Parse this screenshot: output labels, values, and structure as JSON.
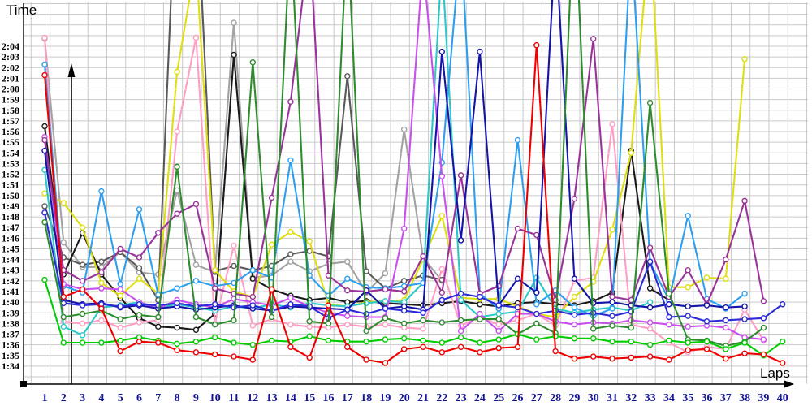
{
  "titles": {
    "y_axis": "Time",
    "x_axis": "Laps"
  },
  "chart_data": {
    "type": "line",
    "title": "",
    "xlabel": "Laps",
    "ylabel": "Time",
    "x": [
      1,
      2,
      3,
      4,
      5,
      6,
      7,
      8,
      9,
      10,
      11,
      12,
      13,
      14,
      15,
      16,
      17,
      18,
      19,
      20,
      21,
      22,
      23,
      24,
      25,
      26,
      27,
      28,
      29,
      30,
      31,
      32,
      33,
      34,
      35,
      36,
      37,
      38,
      39,
      40
    ],
    "x_tick_labels": [
      "1",
      "2",
      "3",
      "4",
      "5",
      "6",
      "7",
      "8",
      "9",
      "10",
      "11",
      "12",
      "13",
      "14",
      "15",
      "16",
      "17",
      "18",
      "19",
      "20",
      "21",
      "22",
      "23",
      "24",
      "25",
      "26",
      "27",
      "28",
      "29",
      "30",
      "31",
      "32",
      "33",
      "34",
      "35",
      "36",
      "37",
      "38",
      "39",
      "40"
    ],
    "y_tick_labels": [
      "2:04",
      "2:03",
      "2:02",
      "2:01",
      "2:00",
      "1:59",
      "1:58",
      "1:57",
      "1:56",
      "1:55",
      "1:54",
      "1:53",
      "1:52",
      "1:51",
      "1:50",
      "1:49",
      "1:48",
      "1:47",
      "1:46",
      "1:45",
      "1:44",
      "1:43",
      "1:42",
      "1:41",
      "1:40",
      "1:39",
      "1:38",
      "1:37",
      "1:36",
      "1:35",
      "1:34"
    ],
    "y_tick_seconds": [
      124,
      123,
      122,
      121,
      120,
      119,
      118,
      117,
      116,
      115,
      114,
      113,
      112,
      111,
      110,
      109,
      108,
      107,
      106,
      105,
      104,
      103,
      102,
      101,
      100,
      99,
      98,
      97,
      96,
      95,
      94
    ],
    "ylim_seconds": [
      94,
      124
    ],
    "unit": "lap time as seconds past 1:00 (96.2 = 1:36.2); values above 128 run off the top of the plot",
    "grid": true,
    "legend_position": "none",
    "series": [
      {
        "name": "gray",
        "color": "#a2a2a2",
        "values": [
          124.7,
          105.6,
          103.3,
          103.3,
          104.7,
          102.8,
          102.6,
          110.5,
          103.5,
          102.8,
          126.2,
          102.3,
          102.5,
          103.8,
          102.9,
          103.6,
          103.8,
          100.9,
          102.7,
          116.2,
          104.2,
          102.0,
          null,
          null,
          null,
          null,
          null,
          null,
          null,
          null,
          null,
          null,
          null,
          null,
          null,
          null,
          null,
          null,
          null,
          null
        ]
      },
      {
        "name": "darkgray",
        "color": "#595959",
        "values": [
          109.0,
          104.2,
          103.5,
          103.8,
          104.7,
          103.2,
          100.2,
          142.0,
          140.0,
          102.9,
          103.4,
          103.0,
          103.4,
          104.5,
          104.8,
          104.3,
          121.2,
          102.9,
          101.3,
          102.0,
          102.5,
          102.1,
          null,
          null,
          null,
          null,
          null,
          null,
          null,
          null,
          null,
          null,
          null,
          null,
          null,
          null,
          null,
          null,
          null,
          null
        ]
      },
      {
        "name": "black",
        "color": "#1a1a1a",
        "values": [
          116.5,
          102.6,
          106.5,
          102.6,
          100.4,
          98.5,
          97.7,
          97.6,
          97.4,
          98.9,
          123.2,
          102.2,
          101.2,
          100.6,
          100.2,
          100.4,
          100.0,
          100.1,
          99.9,
          99.8,
          99.7,
          99.9,
          100.1,
          99.8,
          99.6,
          99.9,
          100.0,
          99.8,
          99.7,
          100.1,
          100.9,
          114.2,
          101.3,
          100.2,
          null,
          null,
          null,
          null,
          null,
          null
        ]
      },
      {
        "name": "pink",
        "color": "#ff9ec4",
        "values": [
          124.8,
          98.2,
          98.0,
          98.3,
          97.6,
          98.1,
          98.3,
          116.0,
          124.8,
          98.0,
          105.3,
          97.8,
          98.4,
          97.9,
          97.7,
          97.6,
          97.9,
          97.7,
          97.9,
          97.6,
          97.5,
          103.1,
          97.8,
          98.6,
          97.9,
          98.3,
          98.9,
          97.8,
          102.0,
          102.3,
          116.7,
          97.9,
          97.5,
          96.2,
          95.3,
          95.8,
          95.6,
          99.3,
          96.4,
          null
        ]
      },
      {
        "name": "yellow",
        "color": "#dede12",
        "values": [
          110.2,
          109.3,
          107.0,
          101.8,
          100.6,
          102.2,
          100.8,
          121.6,
          132.0,
          103.0,
          101.0,
          100.5,
          105.4,
          106.6,
          105.7,
          99.8,
          99.6,
          100.0,
          100.1,
          100.2,
          104.0,
          108.1,
          100.4,
          100.3,
          100.3,
          99.6,
          98.9,
          98.6,
          100.5,
          101.9,
          106.8,
          114.0,
          135.0,
          101.4,
          101.4,
          102.3,
          102.2,
          122.8,
          null,
          null
        ]
      },
      {
        "name": "cyan",
        "color": "#2cc8c8",
        "values": [
          112.4,
          97.7,
          96.9,
          99.5,
          99.7,
          100.0,
          99.5,
          99.8,
          99.5,
          99.2,
          99.6,
          99.4,
          99.8,
          99.5,
          99.9,
          99.7,
          99.6,
          99.9,
          100.1,
          100.0,
          101.8,
          132.0,
          100.2,
          98.6,
          98.9,
          99.1,
          102.3,
          99.4,
          99.0,
          99.3,
          99.5,
          99.2,
          100.0,
          null,
          null,
          null,
          null,
          null,
          null,
          null
        ]
      },
      {
        "name": "lightblue",
        "color": "#2d9ff0",
        "values": [
          122.3,
          101.5,
          100.9,
          110.4,
          101.7,
          108.7,
          100.7,
          101.3,
          102.0,
          101.5,
          101.8,
          103.0,
          102.3,
          113.3,
          102.5,
          100.6,
          102.2,
          101.4,
          101.3,
          101.5,
          101.8,
          113.1,
          134.0,
          100.8,
          99.4,
          115.2,
          99.8,
          101.1,
          99.5,
          98.7,
          99.4,
          134.0,
          103.7,
          100.2,
          108.1,
          100.3,
          99.4,
          100.8,
          null,
          null
        ]
      },
      {
        "name": "magenta",
        "color": "#c94fee",
        "values": [
          115.5,
          101.7,
          101.2,
          101.3,
          101.2,
          100.0,
          99.4,
          100.2,
          99.8,
          99.5,
          100.3,
          100.0,
          99.7,
          100.4,
          99.6,
          99.0,
          98.7,
          98.6,
          98.6,
          106.9,
          132.0,
          111.8,
          97.3,
          98.9,
          97.3,
          98.9,
          98.9,
          98.2,
          97.9,
          98.1,
          98.0,
          98.3,
          98.1,
          97.9,
          97.7,
          97.8,
          97.6,
          96.7,
          96.5,
          null
        ]
      },
      {
        "name": "purple",
        "color": "#993399",
        "values": [
          115.2,
          103.0,
          102.0,
          102.8,
          105.0,
          104.2,
          106.5,
          108.3,
          109.2,
          101.3,
          100.8,
          100.5,
          109.8,
          118.8,
          134.0,
          102.5,
          101.1,
          101.0,
          101.2,
          101.0,
          104.3,
          100.9,
          111.9,
          100.8,
          101.5,
          106.9,
          106.3,
          100.2,
          109.7,
          124.7,
          100.5,
          100.2,
          105.1,
          100.5,
          103.0,
          99.8,
          104.0,
          109.5,
          100.1,
          null
        ]
      },
      {
        "name": "navy",
        "color": "#1414a8",
        "values": [
          114.2,
          100.2,
          99.8,
          99.9,
          99.5,
          99.7,
          99.4,
          99.6,
          99.3,
          99.5,
          99.7,
          99.4,
          99.2,
          99.6,
          99.5,
          99.4,
          99.3,
          101.1,
          99.4,
          99.6,
          99.3,
          123.5,
          105.8,
          123.5,
          99.7,
          102.2,
          100.9,
          134.0,
          102.2,
          99.9,
          100.0,
          99.7,
          99.5,
          99.8,
          99.6,
          99.7,
          99.5,
          99.6,
          null,
          null
        ]
      },
      {
        "name": "blue",
        "color": "#2a2ad6",
        "values": [
          108.4,
          99.9,
          99.7,
          99.8,
          99.6,
          99.8,
          99.7,
          99.9,
          99.6,
          99.8,
          99.5,
          99.7,
          99.2,
          99.8,
          99.6,
          98.5,
          99.3,
          98.9,
          99.4,
          99.2,
          99.0,
          100.2,
          100.8,
          100.5,
          99.7,
          99.5,
          98.9,
          99.2,
          98.8,
          99.0,
          98.7,
          99.1,
          103.8,
          98.6,
          98.7,
          98.2,
          98.3,
          98.4,
          98.5,
          99.8
        ]
      },
      {
        "name": "forestgreen",
        "color": "#2e8b2e",
        "values": [
          107.5,
          98.6,
          98.9,
          99.2,
          98.4,
          98.8,
          98.6,
          112.7,
          98.6,
          97.9,
          98.3,
          122.5,
          98.6,
          135.0,
          98.2,
          98.0,
          135.0,
          97.3,
          98.5,
          98.0,
          98.3,
          98.1,
          98.3,
          98.4,
          98.4,
          97.0,
          98.0,
          97.1,
          138.0,
          97.5,
          97.8,
          97.6,
          118.7,
          100.8,
          96.5,
          96.4,
          95.9,
          96.3,
          97.6,
          null
        ]
      },
      {
        "name": "green",
        "color": "#00cc00",
        "values": [
          102.1,
          96.2,
          96.2,
          96.2,
          96.4,
          96.7,
          96.4,
          96.1,
          96.3,
          96.7,
          96.2,
          96.0,
          96.4,
          96.3,
          96.8,
          96.4,
          96.3,
          96.3,
          96.5,
          96.6,
          96.4,
          96.2,
          96.7,
          96.2,
          96.5,
          97.0,
          96.5,
          96.8,
          96.6,
          96.6,
          96.3,
          96.3,
          96.0,
          96.4,
          96.2,
          96.3,
          95.6,
          96.2,
          95.0,
          96.3
        ]
      },
      {
        "name": "red",
        "color": "#ee0000",
        "values": [
          121.3,
          100.5,
          101.2,
          99.4,
          95.4,
          96.3,
          96.2,
          95.5,
          95.3,
          95.1,
          94.9,
          94.6,
          101.2,
          95.8,
          94.8,
          99.7,
          95.8,
          94.6,
          94.3,
          95.6,
          95.8,
          95.3,
          95.8,
          95.3,
          95.7,
          95.8,
          124.1,
          95.4,
          94.7,
          94.9,
          94.7,
          94.8,
          94.9,
          94.6,
          95.5,
          95.6,
          94.7,
          95.2,
          95.1,
          94.3
        ]
      }
    ],
    "style": {
      "background": "#ffffff",
      "gridline_color": "#c9c9c9",
      "axis_color": "#000000",
      "x_tick_color": "#14149b",
      "y_tick_color": "#000000",
      "marker": "open-circle"
    }
  }
}
